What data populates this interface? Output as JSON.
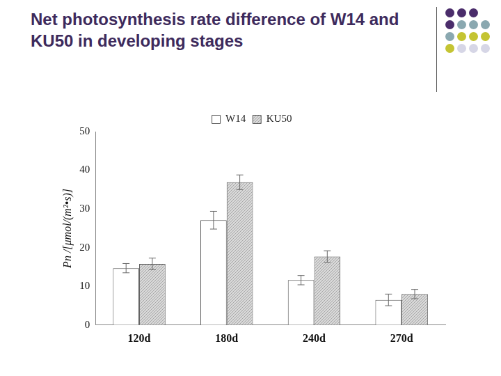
{
  "chart_data": {
    "type": "bar",
    "title": "Net photosynthesis rate difference of W14 and KU50 in developing stages",
    "y_label": "Pn /[μmol/(m²•s)]",
    "categories": [
      "120d",
      "180d",
      "240d",
      "270d"
    ],
    "series": [
      {
        "name": "W14",
        "color": "#ffffff",
        "values": [
          14.7,
          27.1,
          11.6,
          6.5
        ],
        "errors": [
          1.2,
          2.3,
          1.2,
          1.5
        ]
      },
      {
        "name": "KU50",
        "color": "#d9d9d9",
        "values": [
          15.8,
          36.9,
          17.7,
          8.0
        ],
        "errors": [
          1.5,
          1.9,
          1.5,
          1.2
        ]
      }
    ],
    "ylim": [
      0,
      50
    ],
    "yticks": [
      0,
      10,
      20,
      30,
      40,
      50
    ],
    "grid": false,
    "legend": "upper center"
  }
}
